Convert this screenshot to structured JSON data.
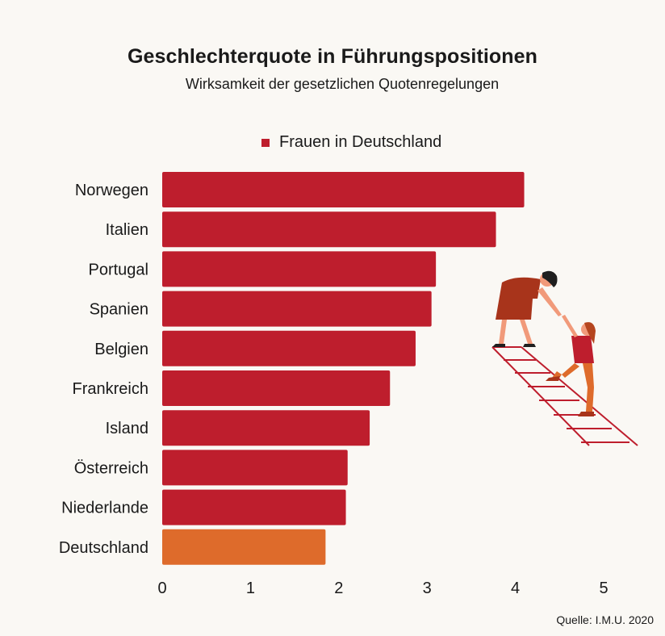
{
  "title": "Geschlechterquote in Führungspositionen",
  "subtitle": "Wirksamkeit der gesetzlichen Quotenregelungen",
  "source": "Quelle: I.M.U. 2020",
  "colors": {
    "bar": "#be1e2d",
    "highlight": "#de6b2b",
    "text": "#1a1a1a"
  },
  "illustration": {
    "icon": "women-helping-climb-ladder-icon"
  },
  "chart_data": {
    "type": "bar",
    "orientation": "horizontal",
    "categories": [
      "Norwegen",
      "Italien",
      "Portugal",
      "Spanien",
      "Belgien",
      "Frankreich",
      "Island",
      "Österreich",
      "Niederlande",
      "Deutschland"
    ],
    "values": [
      4.1,
      3.78,
      3.1,
      3.05,
      2.87,
      2.58,
      2.35,
      2.1,
      2.08,
      1.85
    ],
    "highlight_category": "Deutschland",
    "legend": [
      "Frauen in Deutschland"
    ],
    "legend_position": "top",
    "xlim": [
      0,
      5
    ],
    "xticks": [
      0,
      1,
      2,
      3,
      4,
      5
    ],
    "grid": false
  }
}
